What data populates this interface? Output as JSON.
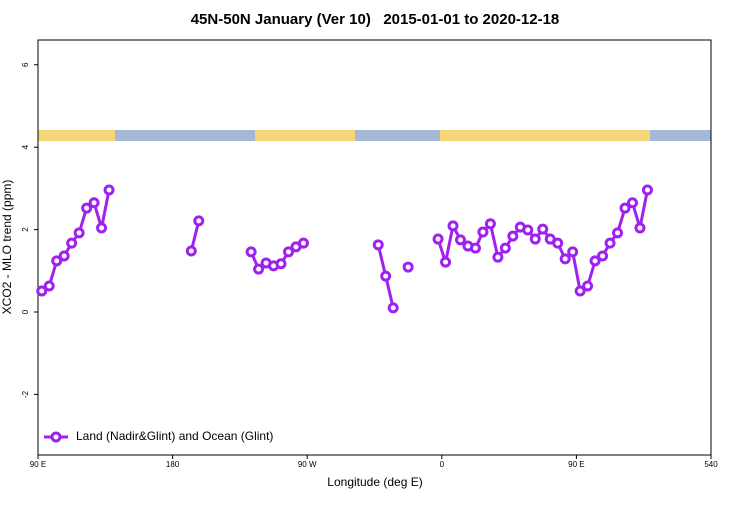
{
  "chart_data": {
    "type": "line",
    "title": "45N-50N January (Ver 10)   2015-01-01 to 2020-12-18",
    "x_label": "Longitude (deg E)",
    "y_label": "XCO2 - MLO trend (ppm)",
    "x": [
      92.5,
      97.5,
      102.5,
      107.5,
      112.5,
      117.5,
      122.5,
      127.5,
      132.5,
      137.5,
      142.5,
      192.5,
      197.5,
      202.5,
      232.5,
      237.5,
      242.5,
      247.5,
      252.5,
      257.5,
      262.5,
      267.5,
      272.5,
      317.5,
      322.5,
      327.5,
      332.5,
      337.5,
      342.5,
      357.5,
      362.5,
      367.5,
      372.5,
      377.5,
      382.5,
      387.5,
      392.5,
      397.5,
      402.5,
      407.5,
      412.5,
      417.5,
      422.5,
      427.5,
      432.5,
      437.5,
      442.5,
      447.5,
      452.5,
      457.5,
      462.5,
      467.5,
      472.5,
      477.5,
      482.5,
      487.5,
      492.5,
      497.5
    ],
    "series": [
      {
        "name": "Land (Nadir&Glint) and Ocean (Glint)",
        "color": "#a020f0",
        "values": [
          0.51,
          0.63,
          1.24,
          1.36,
          1.67,
          1.92,
          2.52,
          2.65,
          2.04,
          2.96,
          null,
          1.48,
          2.21,
          null,
          1.46,
          1.04,
          1.19,
          1.12,
          1.17,
          1.46,
          1.58,
          1.67,
          null,
          1.63,
          0.87,
          0.1,
          null,
          1.09,
          null,
          1.77,
          1.21,
          2.09,
          1.75,
          1.6,
          1.55,
          1.94,
          2.14,
          1.33,
          1.55,
          1.84,
          2.06,
          1.99,
          1.77,
          2.01,
          1.77,
          1.67,
          1.29,
          1.46,
          0.51,
          0.63,
          1.24,
          1.36,
          1.67,
          1.92,
          2.52,
          2.65,
          2.04,
          2.96
        ]
      }
    ],
    "xlim": [
      90,
      540
    ],
    "xticks": [
      {
        "value": 90,
        "label": "90 E"
      },
      180,
      {
        "value": 270,
        "label": "90 W"
      },
      {
        "value": 360,
        "label": "0"
      },
      {
        "value": 450,
        "label": "90 E"
      },
      540
    ],
    "ylim": [
      -3.47,
      6.6
    ],
    "yticks": [
      -2,
      0,
      2,
      4,
      6
    ],
    "legend": "bottomleft"
  }
}
